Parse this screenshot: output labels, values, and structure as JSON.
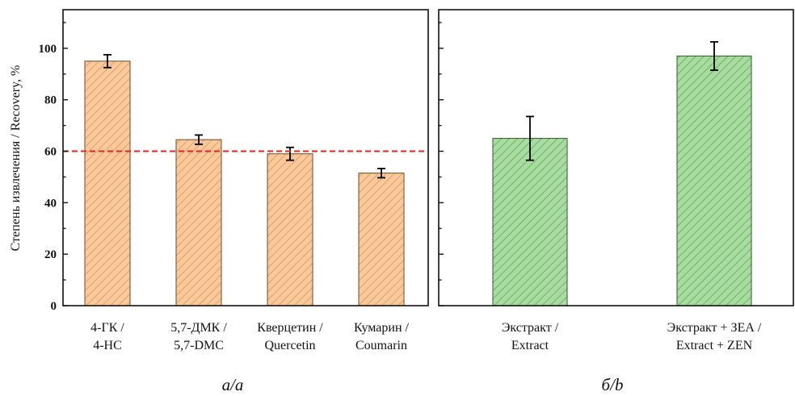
{
  "figure": {
    "ylabel": "Степень извлечения / Recovery, %",
    "panel_a_label": "а/а",
    "panel_b_label": "б/b"
  },
  "colors": {
    "orange_fill": "#f9c99b",
    "orange_hatch": "#d08a4e",
    "green_fill": "#a9dca0",
    "green_hatch": "#4f9a4a",
    "threshold_line": "#e8231f",
    "axis": "#111111"
  },
  "chart_data": [
    {
      "type": "bar",
      "panel": "а/а",
      "categories": [
        [
          "4-ГК /",
          "4-HC"
        ],
        [
          "5,7-ДМК /",
          "5,7-DMC"
        ],
        [
          "Кверцетин /",
          "Quercetin"
        ],
        [
          "Кумарин /",
          "Coumarin"
        ]
      ],
      "values": [
        95,
        64.5,
        59,
        51.5
      ],
      "errors": [
        2.5,
        1.8,
        2.5,
        1.8
      ],
      "reference_line": 60,
      "ylabel": "Степень извлечения / Recovery, %",
      "ylim": [
        0,
        115
      ],
      "yticks": [
        0,
        20,
        40,
        60,
        80,
        100
      ],
      "grid": false,
      "hatch": "diagonal"
    },
    {
      "type": "bar",
      "panel": "б/b",
      "categories": [
        [
          "Экстракт /",
          "Extract"
        ],
        [
          "Экстракт + ЗЕА /",
          "Extract + ZEN"
        ]
      ],
      "values": [
        65,
        97
      ],
      "errors": [
        8.5,
        5.5
      ],
      "ylim": [
        0,
        115
      ],
      "yticks": [
        0,
        20,
        40,
        60,
        80,
        100
      ],
      "show_tick_labels": false,
      "grid": false,
      "hatch": "diagonal"
    }
  ]
}
